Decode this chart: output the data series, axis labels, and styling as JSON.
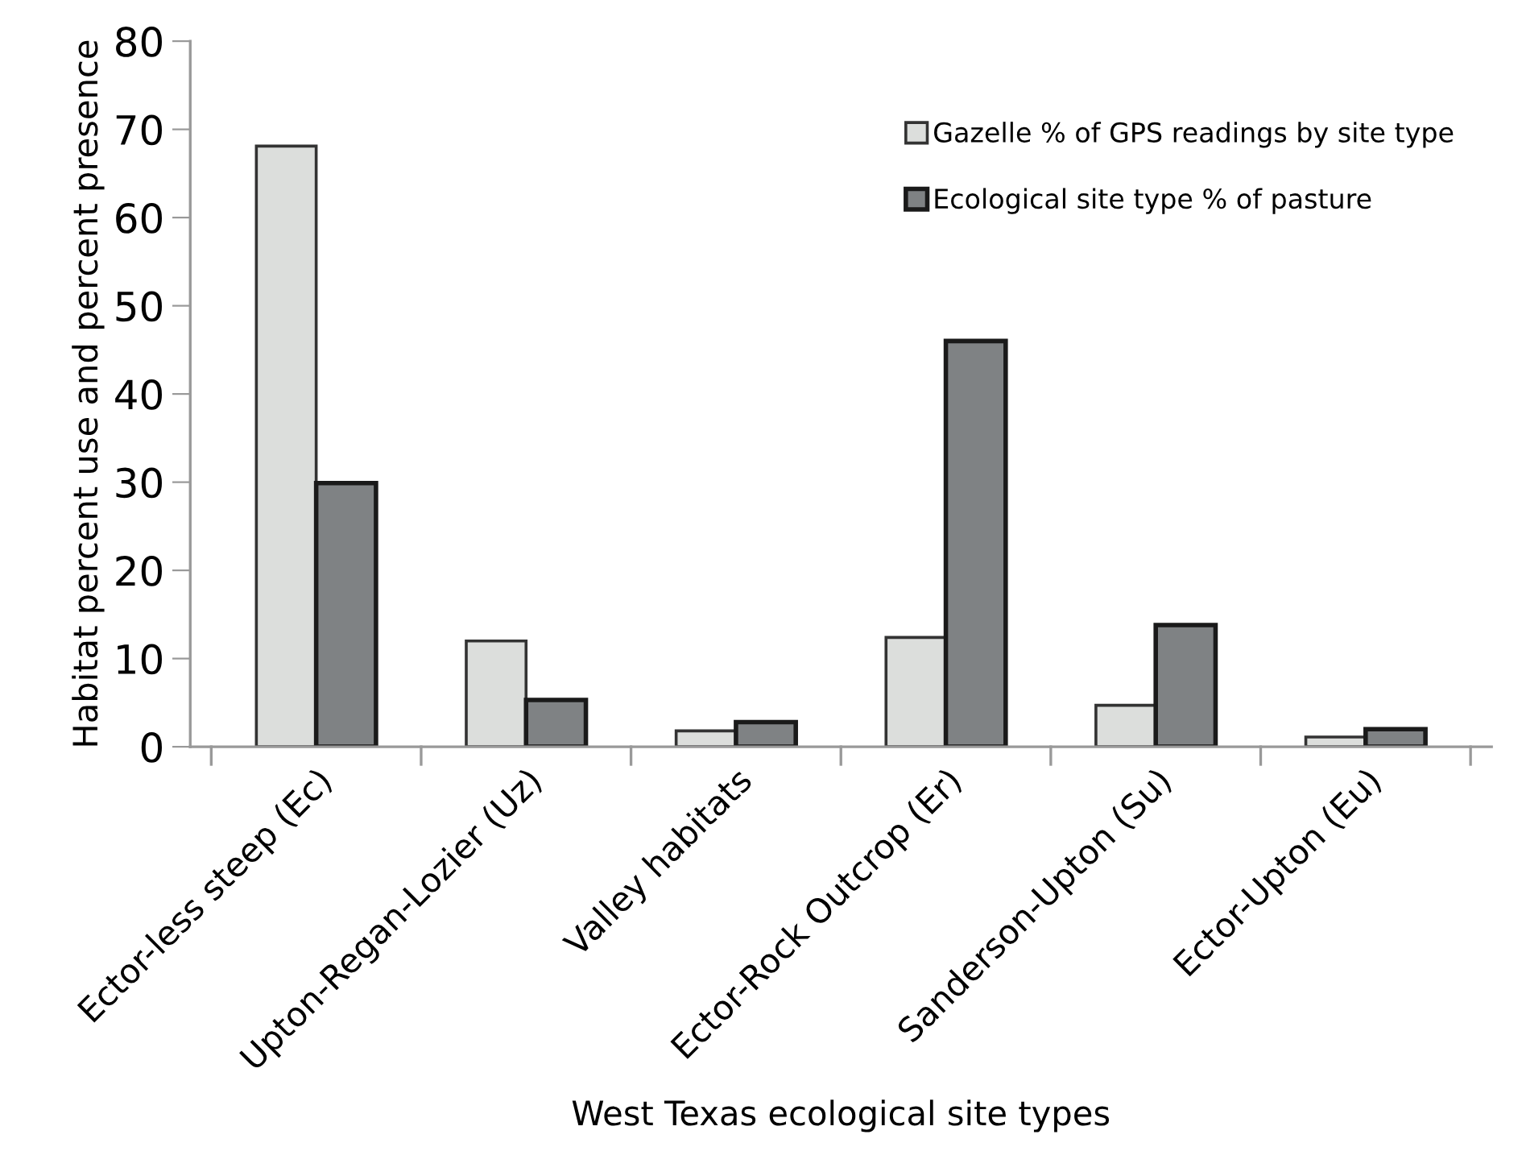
{
  "chart_data": {
    "type": "bar",
    "xlabel": "West Texas ecological site types",
    "ylabel": "Habitat percent use and percent presence",
    "categories": [
      "Ector-less steep (Ec)",
      "Upton-Regan-Lozier (Uz)",
      "Valley habitats",
      "Ector-Rock Outcrop (Er)",
      "Sanderson-Upton (Su)",
      "Ector-Upton (Eu)"
    ],
    "series": [
      {
        "name": "Gazelle % of GPS readings by site type",
        "color": "#dcdedc",
        "values": [
          68.1,
          12.0,
          1.8,
          12.4,
          4.7,
          1.1
        ]
      },
      {
        "name": "Ecological site type % of pasture",
        "color": "#7f8284",
        "values": [
          29.9,
          5.3,
          2.8,
          46.0,
          13.8,
          2.0
        ]
      }
    ],
    "ylim": [
      0,
      80
    ],
    "yticks": [
      0,
      10,
      20,
      30,
      40,
      50,
      60,
      70,
      80
    ],
    "grid": false,
    "legend": "top right"
  }
}
